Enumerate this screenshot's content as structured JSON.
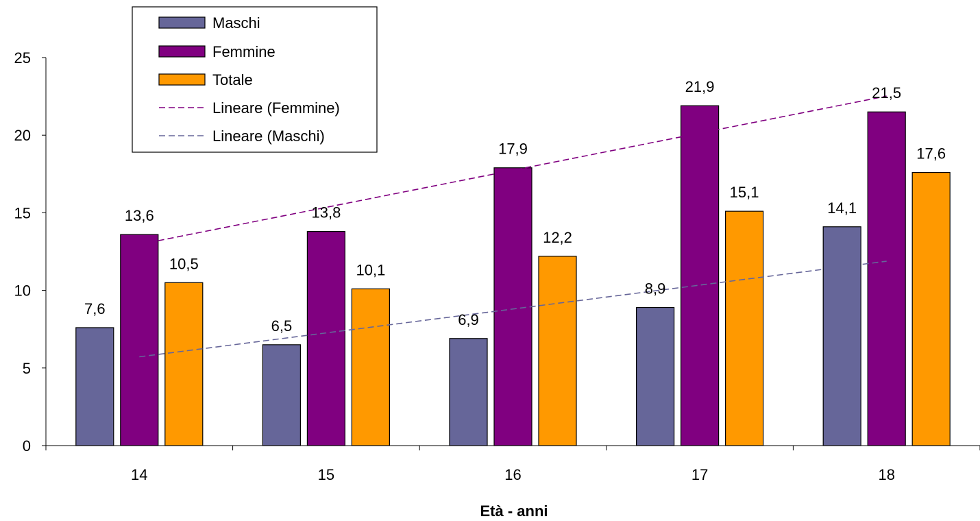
{
  "chart_data": {
    "type": "bar",
    "title": "",
    "xlabel": "Età - anni",
    "ylabel": "",
    "categories": [
      "14",
      "15",
      "16",
      "17",
      "18"
    ],
    "ylim": [
      0,
      25
    ],
    "yticks": [
      0,
      5,
      10,
      15,
      20,
      25
    ],
    "grid": false,
    "legend_position": "top-left",
    "series": [
      {
        "name": "Maschi",
        "values": [
          7.6,
          6.5,
          6.9,
          8.9,
          14.1
        ],
        "labels": [
          "7,6",
          "6,5",
          "6,9",
          "8,9",
          "14,1"
        ],
        "color": "#666699"
      },
      {
        "name": "Femmine",
        "values": [
          13.6,
          13.8,
          17.9,
          21.9,
          21.5
        ],
        "labels": [
          "13,6",
          "13,8",
          "17,9",
          "21,9",
          "21,5"
        ],
        "color": "#800080"
      },
      {
        "name": "Totale",
        "values": [
          10.5,
          10.1,
          12.2,
          15.1,
          17.6
        ],
        "labels": [
          "10,5",
          "10,1",
          "12,2",
          "15,1",
          "17,6"
        ],
        "color": "#FF9900"
      }
    ],
    "trendlines": [
      {
        "name": "Lineare (Femmine)",
        "of": "Femmine",
        "color": "#800080",
        "style": "dashed"
      },
      {
        "name": "Lineare (Maschi)",
        "of": "Maschi",
        "color": "#666699",
        "style": "dashed"
      }
    ]
  }
}
